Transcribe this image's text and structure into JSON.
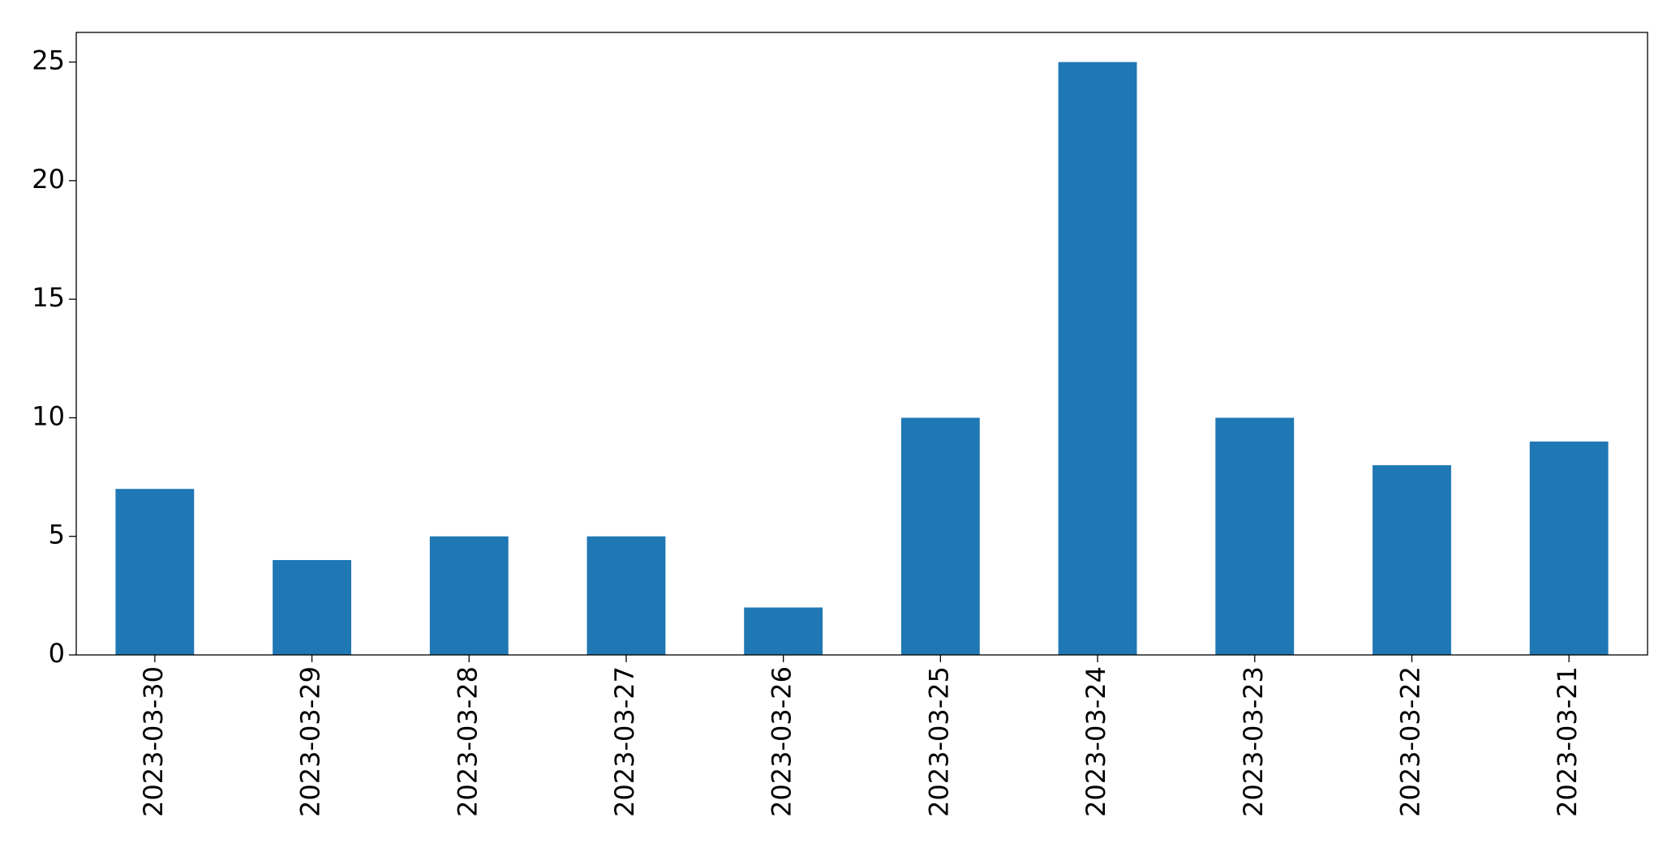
{
  "chart_data": {
    "type": "bar",
    "categories": [
      "2023-03-30",
      "2023-03-29",
      "2023-03-28",
      "2023-03-27",
      "2023-03-26",
      "2023-03-25",
      "2023-03-24",
      "2023-03-23",
      "2023-03-22",
      "2023-03-21"
    ],
    "values": [
      7,
      4,
      5,
      5,
      2,
      10,
      25,
      10,
      8,
      9
    ],
    "color": "#1f77b4",
    "ylim": [
      0,
      26.25
    ],
    "yticks": [
      0,
      5,
      10,
      15,
      20,
      25
    ],
    "grid": false
  }
}
